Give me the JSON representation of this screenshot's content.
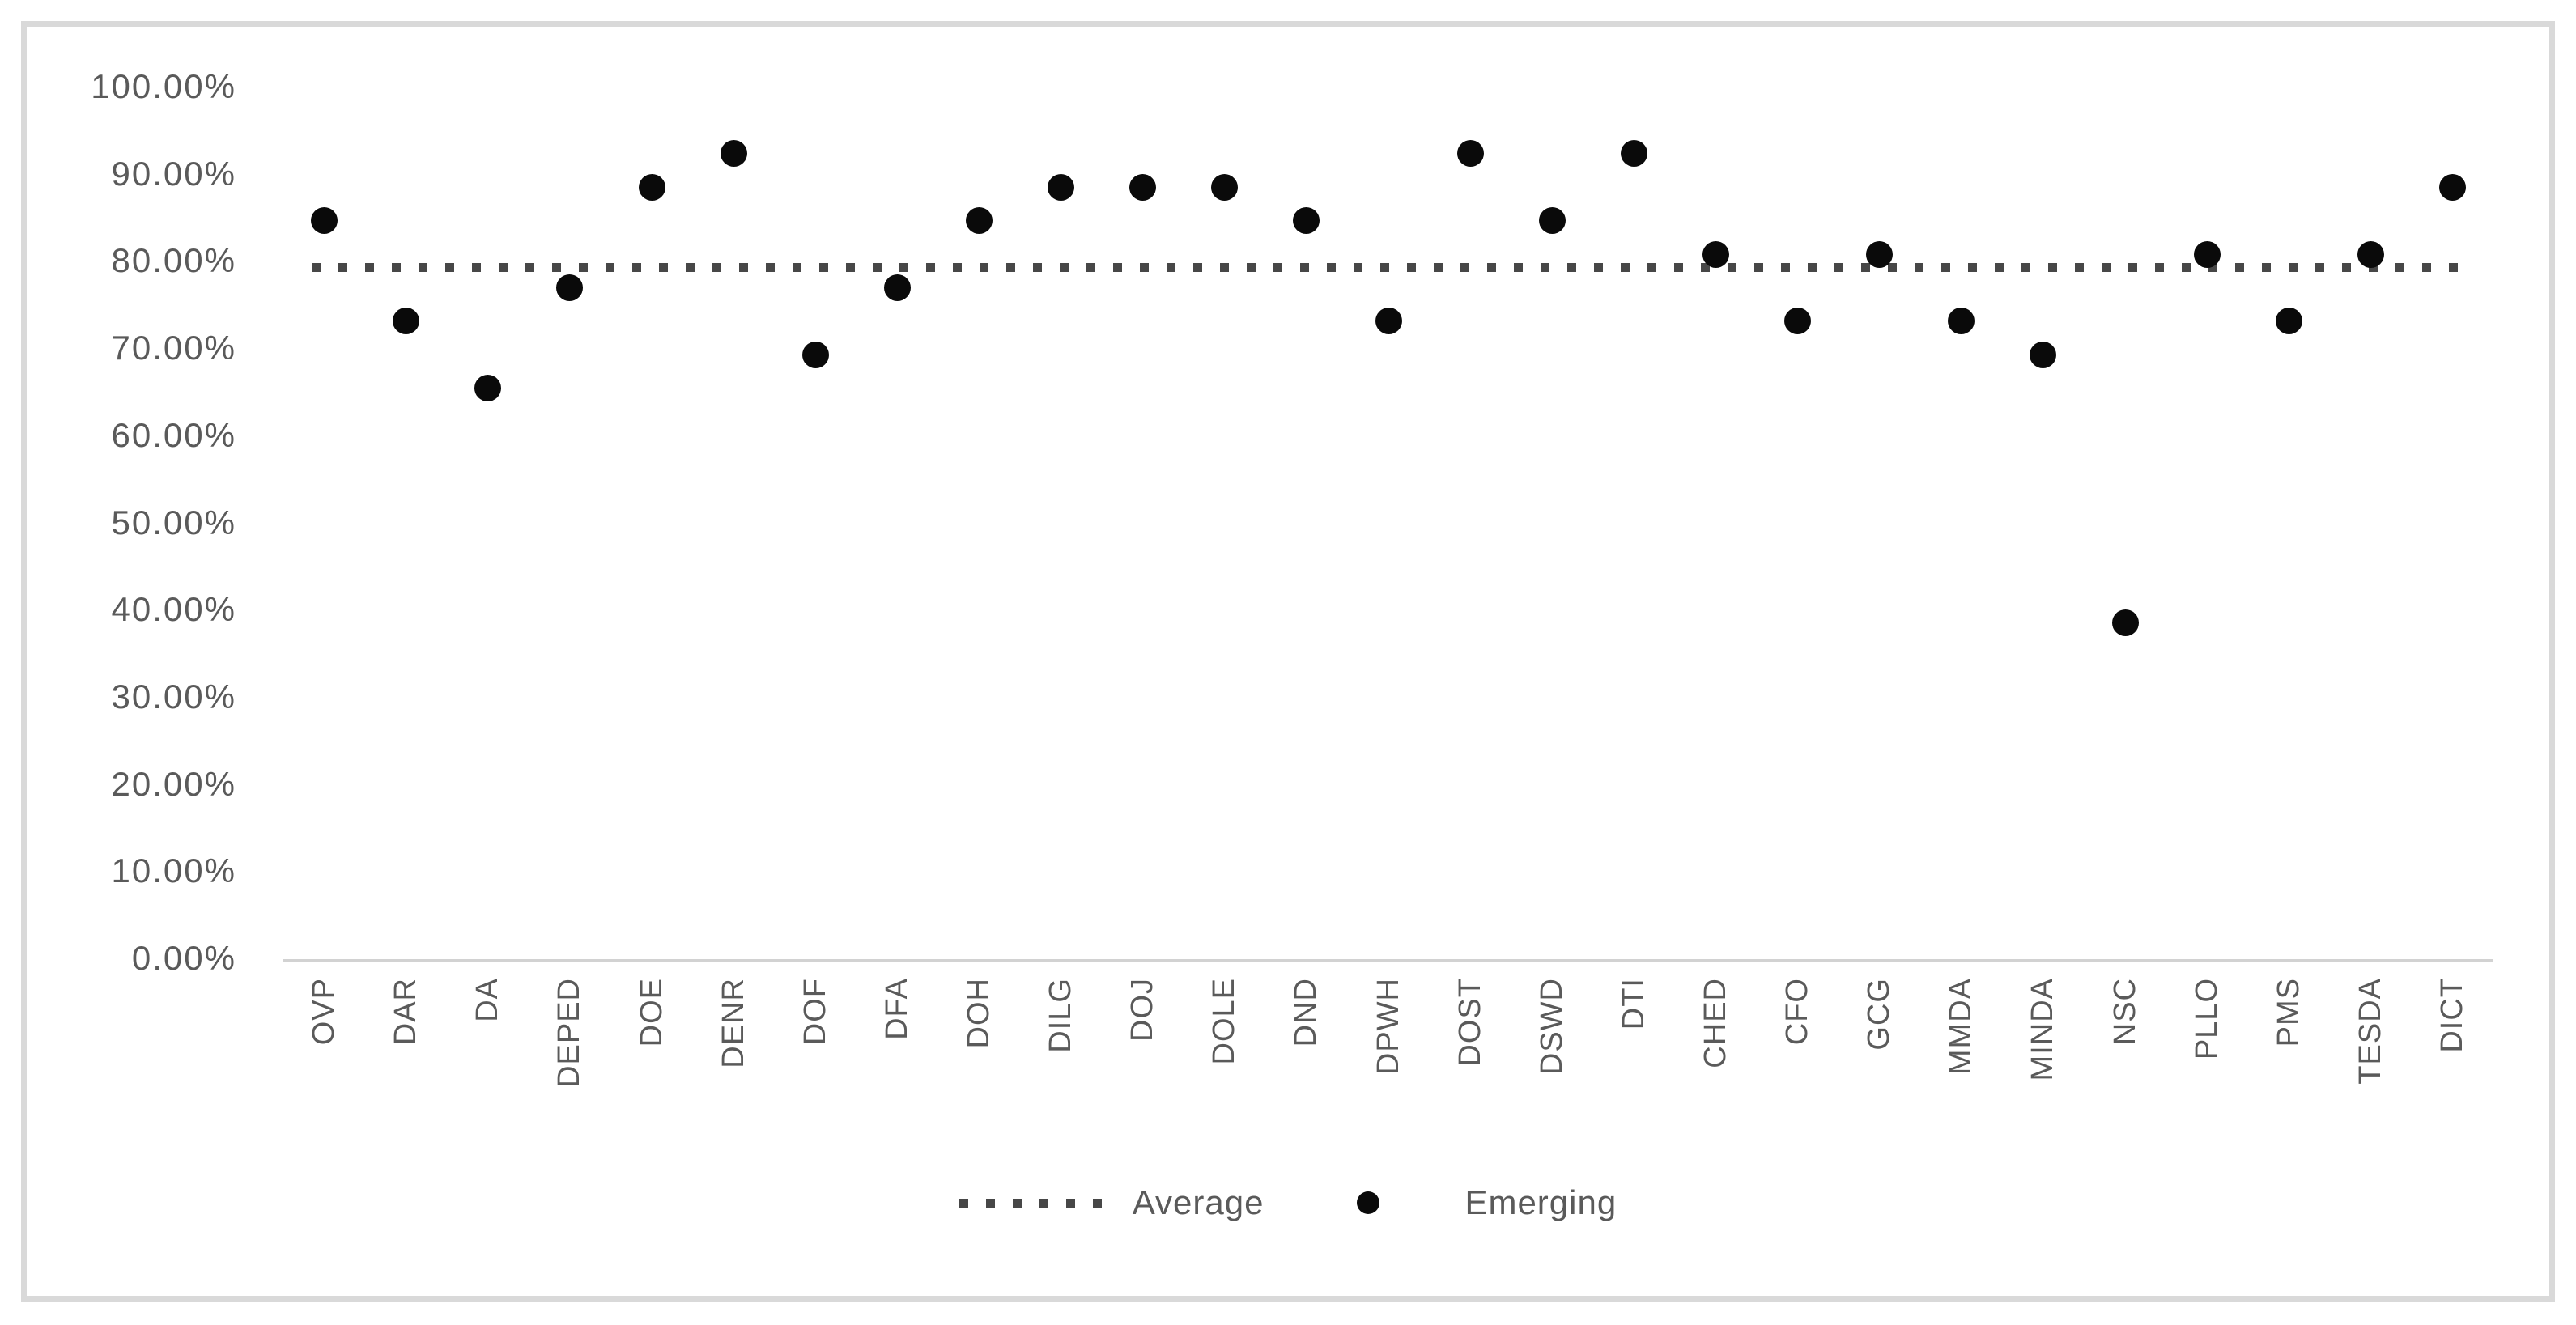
{
  "chart_data": {
    "type": "scatter",
    "title": "",
    "xlabel": "",
    "ylabel": "",
    "categories": [
      "OVP",
      "DAR",
      "DA",
      "DEPED",
      "DOE",
      "DENR",
      "DOF",
      "DFA",
      "DOH",
      "DILG",
      "DOJ",
      "DOLE",
      "DND",
      "DPWH",
      "DOST",
      "DSWD",
      "DTI",
      "CHED",
      "CFO",
      "GCG",
      "MMDA",
      "MINDA",
      "NSC",
      "PLLO",
      "PMS",
      "TESDA",
      "DICT"
    ],
    "series": [
      {
        "name": "Emerging",
        "marker": "filled-dot",
        "values": [
          84.62,
          73.08,
          65.38,
          76.92,
          88.46,
          92.31,
          69.23,
          76.92,
          84.62,
          88.46,
          88.46,
          88.46,
          84.62,
          73.08,
          92.31,
          84.62,
          92.31,
          80.77,
          73.08,
          80.77,
          73.08,
          69.23,
          38.46,
          80.77,
          73.08,
          80.77,
          88.46
        ]
      },
      {
        "name": "Average",
        "marker": "dotted-line",
        "value": 79.34
      }
    ],
    "y_tick_labels": [
      "100.00%",
      "90.00%",
      "80.00%",
      "70.00%",
      "60.00%",
      "50.00%",
      "40.00%",
      "30.00%",
      "20.00%",
      "10.00%",
      "0.00%"
    ],
    "ylim": [
      0,
      100
    ],
    "grid": false,
    "legend_position": "bottom",
    "legend": [
      {
        "label": "Average",
        "marker": "dotted-line"
      },
      {
        "label": "Emerging",
        "marker": "filled-dot"
      }
    ],
    "colors": {
      "marker": "#0a0a0a",
      "average_line": "#474747",
      "axis_line": "#d2d2d2",
      "tick_text": "#5a5a5a",
      "chart_border": "#d9d9d9",
      "background": "#ffffff"
    }
  }
}
